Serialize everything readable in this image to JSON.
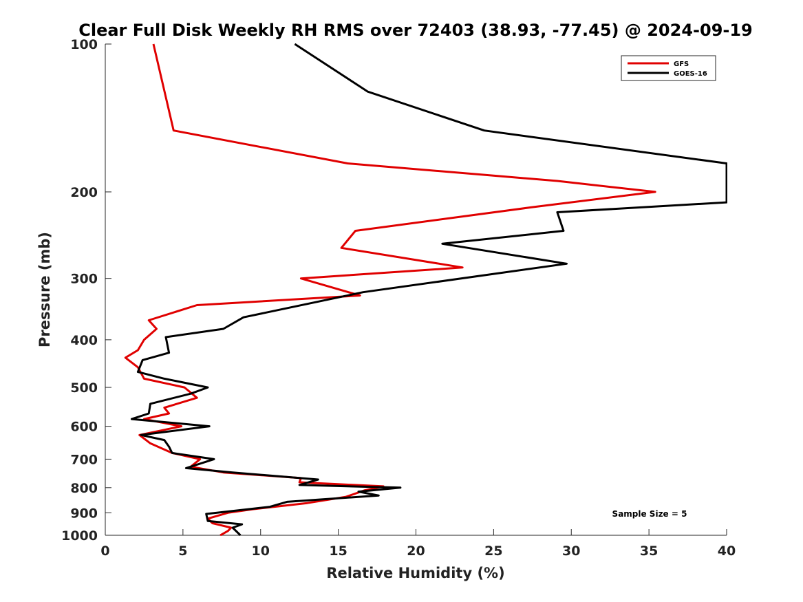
{
  "chart_data": {
    "type": "line",
    "title": "Clear Full Disk Weekly RH RMS over 72403 (38.93, -77.45) @ 2024-09-19",
    "xlabel": "Relative Humidity (%)",
    "ylabel": "Pressure (mb)",
    "xlim": [
      0,
      40
    ],
    "ylim": [
      100,
      1000
    ],
    "y_scale": "log",
    "y_reversed": true,
    "x_ticks": [
      "0",
      "5",
      "10",
      "15",
      "20",
      "25",
      "30",
      "35",
      "40"
    ],
    "y_ticks": [
      "100",
      "200",
      "300",
      "400",
      "500",
      "600",
      "700",
      "800",
      "900",
      "1000"
    ],
    "grid": false,
    "legend_position": "top-right",
    "annotation": "Sample Size = 5",
    "series": [
      {
        "name": "GFS",
        "color": "#e00000",
        "points": [
          [
            3.1,
            100
          ],
          [
            4.4,
            150
          ],
          [
            15.6,
            175
          ],
          [
            29.1,
            190
          ],
          [
            35.4,
            200
          ],
          [
            27.4,
            215
          ],
          [
            16.1,
            240
          ],
          [
            15.2,
            260
          ],
          [
            23.0,
            285
          ],
          [
            12.6,
            300
          ],
          [
            16.4,
            325
          ],
          [
            5.9,
            340
          ],
          [
            2.8,
            365
          ],
          [
            3.3,
            380
          ],
          [
            2.5,
            400
          ],
          [
            2.1,
            420
          ],
          [
            1.3,
            435
          ],
          [
            2.1,
            455
          ],
          [
            2.5,
            480
          ],
          [
            5.1,
            500
          ],
          [
            5.9,
            525
          ],
          [
            3.8,
            550
          ],
          [
            4.1,
            565
          ],
          [
            2.5,
            580
          ],
          [
            4.9,
            600
          ],
          [
            2.2,
            625
          ],
          [
            2.9,
            650
          ],
          [
            4.3,
            680
          ],
          [
            6.1,
            700
          ],
          [
            5.5,
            725
          ],
          [
            7.6,
            745
          ],
          [
            12.6,
            765
          ],
          [
            12.5,
            780
          ],
          [
            17.9,
            795
          ],
          [
            16.7,
            810
          ],
          [
            15.5,
            835
          ],
          [
            13.0,
            860
          ],
          [
            9.5,
            885
          ],
          [
            7.9,
            900
          ],
          [
            6.6,
            925
          ],
          [
            6.9,
            945
          ],
          [
            8.1,
            965
          ],
          [
            7.9,
            980
          ],
          [
            7.4,
            1000
          ]
        ]
      },
      {
        "name": "GOES-16",
        "color": "#000000",
        "points": [
          [
            12.2,
            100
          ],
          [
            16.9,
            125
          ],
          [
            24.4,
            150
          ],
          [
            40.0,
            175
          ],
          [
            40.0,
            210
          ],
          [
            29.1,
            220
          ],
          [
            29.5,
            240
          ],
          [
            21.7,
            255
          ],
          [
            29.7,
            280
          ],
          [
            16.6,
            320
          ],
          [
            8.9,
            360
          ],
          [
            7.6,
            380
          ],
          [
            3.9,
            395
          ],
          [
            4.1,
            425
          ],
          [
            2.4,
            440
          ],
          [
            2.1,
            465
          ],
          [
            3.8,
            480
          ],
          [
            6.6,
            500
          ],
          [
            5.5,
            515
          ],
          [
            2.9,
            540
          ],
          [
            2.8,
            565
          ],
          [
            1.7,
            580
          ],
          [
            6.7,
            600
          ],
          [
            2.3,
            625
          ],
          [
            3.8,
            640
          ],
          [
            4.1,
            660
          ],
          [
            4.3,
            680
          ],
          [
            7.0,
            700
          ],
          [
            5.2,
            730
          ],
          [
            8.2,
            745
          ],
          [
            13.7,
            770
          ],
          [
            12.5,
            790
          ],
          [
            19.0,
            800
          ],
          [
            16.3,
            815
          ],
          [
            17.6,
            830
          ],
          [
            11.7,
            855
          ],
          [
            10.6,
            875
          ],
          [
            6.5,
            905
          ],
          [
            6.6,
            935
          ],
          [
            8.8,
            950
          ],
          [
            8.2,
            965
          ],
          [
            8.7,
            1000
          ]
        ]
      }
    ]
  }
}
